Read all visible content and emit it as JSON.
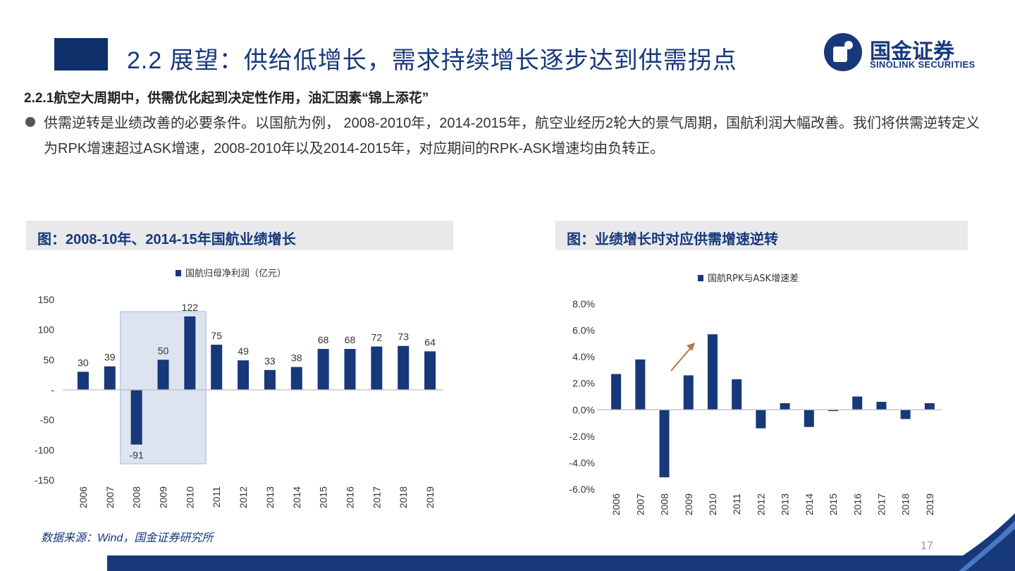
{
  "header": {
    "title": "2.2 展望：供给低增长，需求持续增长逐步达到供需拐点"
  },
  "logo": {
    "cn": "国金证券",
    "en": "SINOLINK SECURITIES"
  },
  "section": {
    "subtitle": "2.2.1航空大周期中，供需优化起到决定性作用，油汇因素“锦上添花”",
    "bullet": "供需逆转是业绩改善的必要条件。以国航为例，  2008-2010年，2014-2015年，航空业经历2轮大的景气周期，国航利润大幅改善。我们将供需逆转定义为RPK增速超过ASK增速，2008-2010年以及2014-2015年，对应期间的RPK-ASK增速均由负转正。"
  },
  "charts": {
    "left_header": "图：2008-10年、2014-15年国航业绩增长",
    "right_header": "图：业绩增长时对应供需增速逆转"
  },
  "colors": {
    "bar": "#17387a",
    "highlight": "#dde4f0",
    "arrow": "#b5764a"
  },
  "chart_data": [
    {
      "type": "bar",
      "legend": "国航归母净利润（亿元）",
      "categories": [
        "2006",
        "2007",
        "2008",
        "2009",
        "2010",
        "2011",
        "2012",
        "2013",
        "2014",
        "2015",
        "2016",
        "2017",
        "2018",
        "2019"
      ],
      "values": [
        30,
        39,
        -91,
        50,
        122,
        75,
        49,
        33,
        38,
        68,
        68,
        72,
        73,
        64
      ],
      "ylim": [
        -150,
        150
      ],
      "yticks": [
        150,
        100,
        50,
        0,
        -50,
        -100,
        -150
      ],
      "ytick_labels": [
        "150",
        "100",
        "50",
        "-",
        "-50",
        "-100",
        "-150"
      ],
      "highlight_range": [
        "2008",
        "2010"
      ]
    },
    {
      "type": "bar",
      "legend": "国航RPK与ASK增速差",
      "categories": [
        "2006",
        "2007",
        "2008",
        "2009",
        "2010",
        "2011",
        "2012",
        "2013",
        "2014",
        "2015",
        "2016",
        "2017",
        "2018",
        "2019"
      ],
      "values": [
        2.7,
        3.8,
        -5.1,
        2.6,
        5.7,
        2.3,
        -1.4,
        0.5,
        -1.3,
        -0.1,
        1.0,
        0.6,
        -0.7,
        0.5
      ],
      "unit": "%",
      "ylim": [
        -6,
        8
      ],
      "yticks": [
        8,
        6,
        4,
        2,
        0,
        -2,
        -4,
        -6
      ],
      "ytick_labels": [
        "8.0%",
        "6.0%",
        "4.0%",
        "2.0%",
        "0.0%",
        "-2.0%",
        "-4.0%",
        "-6.0%"
      ],
      "annotation": "arrow up-right above 2009"
    }
  ],
  "footer": {
    "source": "数据来源：Wind，国金证券研究所",
    "page": "17"
  }
}
